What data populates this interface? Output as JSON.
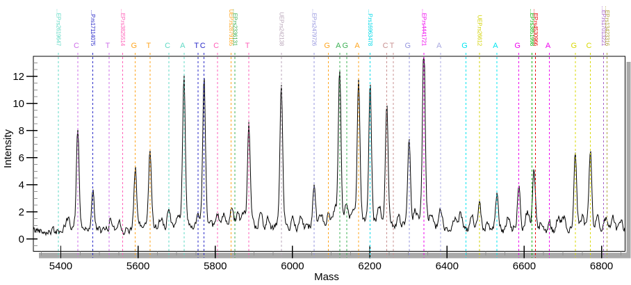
{
  "chart_data": {
    "type": "line",
    "title": "",
    "xlabel": "Mass",
    "ylabel": "Intensity",
    "x_range": [
      5329,
      6861
    ],
    "y_range": [
      -0.9,
      13.48
    ],
    "x_major_ticks": [
      5400,
      5600,
      5800,
      6000,
      6200,
      6400,
      6600,
      6800
    ],
    "x_minor_step": 50,
    "y_major_ticks": [
      0,
      2,
      4,
      6,
      8,
      10,
      12
    ],
    "y_minor_step": 0.5,
    "grid": "off",
    "legend": "none",
    "trace_color": "#000000",
    "baseline": 0.65,
    "noise_amplitude": 0.22,
    "peaks": [
      {
        "mass": 5444,
        "intensity": 7.4
      },
      {
        "mass": 5483,
        "intensity": 3.4
      },
      {
        "mass": 5593,
        "intensity": 4.6
      },
      {
        "mass": 5631,
        "intensity": 5.7
      },
      {
        "mass": 5719,
        "intensity": 10.8
      },
      {
        "mass": 5771,
        "intensity": 10.8
      },
      {
        "mass": 5887,
        "intensity": 7.4
      },
      {
        "mass": 5971,
        "intensity": 10.3
      },
      {
        "mass": 6056,
        "intensity": 3.7
      },
      {
        "mass": 6122,
        "intensity": 11.3
      },
      {
        "mass": 6171,
        "intensity": 10.8
      },
      {
        "mass": 6201,
        "intensity": 10.0
      },
      {
        "mass": 6244,
        "intensity": 8.8
      },
      {
        "mass": 6302,
        "intensity": 6.7
      },
      {
        "mass": 6340,
        "intensity": 13.1
      },
      {
        "mass": 6484,
        "intensity": 2.9
      },
      {
        "mass": 6529,
        "intensity": 3.0
      },
      {
        "mass": 6586,
        "intensity": 3.8
      },
      {
        "mass": 6625,
        "intensity": 5.0
      },
      {
        "mass": 6732,
        "intensity": 5.8
      },
      {
        "mass": 6771,
        "intensity": 5.9
      }
    ],
    "minor_bumps": [
      {
        "mass": 5418,
        "intensity": 1.5
      },
      {
        "mass": 5530,
        "intensity": 1.5
      },
      {
        "mass": 5552,
        "intensity": 1.4
      },
      {
        "mass": 5660,
        "intensity": 1.4
      },
      {
        "mass": 5680,
        "intensity": 1.9
      },
      {
        "mass": 5700,
        "intensity": 1.3
      },
      {
        "mass": 5755,
        "intensity": 1.7
      },
      {
        "mass": 5806,
        "intensity": 1.7
      },
      {
        "mass": 5822,
        "intensity": 1.6
      },
      {
        "mass": 5843,
        "intensity": 2.0
      },
      {
        "mass": 5858,
        "intensity": 2.0
      },
      {
        "mass": 5872,
        "intensity": 1.7
      },
      {
        "mass": 5918,
        "intensity": 1.9
      },
      {
        "mass": 5936,
        "intensity": 1.6
      },
      {
        "mass": 6000,
        "intensity": 1.6
      },
      {
        "mass": 6022,
        "intensity": 1.8
      },
      {
        "mass": 6075,
        "intensity": 1.7
      },
      {
        "mass": 6093,
        "intensity": 1.8
      },
      {
        "mass": 6108,
        "intensity": 1.6
      },
      {
        "mass": 6140,
        "intensity": 2.3
      },
      {
        "mass": 6155,
        "intensity": 1.8
      },
      {
        "mass": 6224,
        "intensity": 2.2
      },
      {
        "mass": 6274,
        "intensity": 1.5
      },
      {
        "mass": 6318,
        "intensity": 1.7
      },
      {
        "mass": 6360,
        "intensity": 1.6
      },
      {
        "mass": 6383,
        "intensity": 2.3
      },
      {
        "mass": 6420,
        "intensity": 1.6
      },
      {
        "mass": 6435,
        "intensity": 1.8
      },
      {
        "mass": 6465,
        "intensity": 1.6
      },
      {
        "mass": 6505,
        "intensity": 1.4
      },
      {
        "mass": 6558,
        "intensity": 1.5
      },
      {
        "mass": 6608,
        "intensity": 1.9
      },
      {
        "mass": 6645,
        "intensity": 1.4
      },
      {
        "mass": 6665,
        "intensity": 1.4
      },
      {
        "mass": 6688,
        "intensity": 1.7
      },
      {
        "mass": 6702,
        "intensity": 1.6
      },
      {
        "mass": 6750,
        "intensity": 1.5
      },
      {
        "mass": 6790,
        "intensity": 1.7
      },
      {
        "mass": 6812,
        "intensity": 1.5
      },
      {
        "mass": 6830,
        "intensity": 1.6
      },
      {
        "mass": 6850,
        "intensity": 1.5
      }
    ],
    "markers": [
      {
        "mass": 5394,
        "color": "#5FD9C4",
        "label": "...EP.rs2619647"
      },
      {
        "mass": 5444,
        "color": "#CE6FE8",
        "letter": "C"
      },
      {
        "mass": 5483,
        "color": "#2A2AC8",
        "label": "...P.rs17114075"
      },
      {
        "mass": 5525,
        "color": "#CE6FE8",
        "letter": "T"
      },
      {
        "mass": 5560,
        "color": "#FF60B8",
        "label": "...EP.rs3825514"
      },
      {
        "mass": 5593,
        "color": "#FFA51E",
        "letter": "G"
      },
      {
        "mass": 5631,
        "color": "#FFA51E",
        "letter": "T"
      },
      {
        "mass": 5680,
        "color": "#5FD9C4",
        "letter": "C"
      },
      {
        "mass": 5719,
        "color": "#5FD9C4",
        "letter": "A"
      },
      {
        "mass": 5755,
        "color": "#2A2AC8",
        "letter": "T"
      },
      {
        "mass": 5771,
        "color": "#2A2AC8",
        "letter": "C"
      },
      {
        "mass": 5806,
        "color": "#FF60B8",
        "letter": "C"
      },
      {
        "mass": 5841,
        "color": "#FFA51E",
        "label": "UEP.rs2879165"
      },
      {
        "mass": 5851,
        "color": "#3CB054",
        "label": "...EP.rs2336131"
      },
      {
        "mass": 5887,
        "color": "#FF60B8",
        "letter": "T"
      },
      {
        "mass": 5971,
        "color": "#B9A6B9",
        "label": "UEP.rs242138"
      },
      {
        "mass": 6056,
        "color": "#9494DE",
        "label": "...EP.rs2479726"
      },
      {
        "mass": 6093,
        "color": "#FFA51E",
        "letter": "G"
      },
      {
        "mass": 6122,
        "color": "#3CB054",
        "letter": "A"
      },
      {
        "mass": 6140,
        "color": "#3CB054",
        "letter": "G"
      },
      {
        "mass": 6171,
        "color": "#FFA51E",
        "letter": "A"
      },
      {
        "mass": 6201,
        "color": "#00D9E8",
        "label": "...P.rs16963478"
      },
      {
        "mass": 6244,
        "color": "#C89090",
        "letter": "C"
      },
      {
        "mass": 6261,
        "color": "#C89090",
        "letter": "T"
      },
      {
        "mass": 6302,
        "color": "#9494DE",
        "letter": "G"
      },
      {
        "mass": 6340,
        "color": "#EE00EE",
        "label": "...EP.rs4441721"
      },
      {
        "mass": 6383,
        "color": "#A8A8E0",
        "letter": "A"
      },
      {
        "mass": 6449,
        "color": "#00E5F0",
        "letter": "G"
      },
      {
        "mass": 6484,
        "color": "#D2D200",
        "label": "UEP.rs26612"
      },
      {
        "mass": 6529,
        "color": "#00E5F0",
        "letter": "A"
      },
      {
        "mass": 6586,
        "color": "#EE00EE",
        "letter": "G"
      },
      {
        "mass": 6620,
        "color": "#00B400",
        "label": "...EP.rs3851998"
      },
      {
        "mass": 6629,
        "color": "#E80000",
        "label": "...EP.rs4530966"
      },
      {
        "mass": 6665,
        "color": "#EE00EE",
        "letter": "A"
      },
      {
        "mass": 6732,
        "color": "#D8D800",
        "letter": "G"
      },
      {
        "mass": 6771,
        "color": "#D8D800",
        "letter": "C"
      },
      {
        "mass": 6805,
        "color": "#A55FC8",
        "label": "...EP.rs17013221"
      },
      {
        "mass": 6814,
        "color": "#AFA23C",
        "label": "...EP.rs13423316"
      }
    ],
    "style": {
      "axis_color": "#000000",
      "minor_tick_color": "#909090",
      "shadow_color": "#A9A9A9",
      "plot_background": "#FFFFFF"
    }
  }
}
